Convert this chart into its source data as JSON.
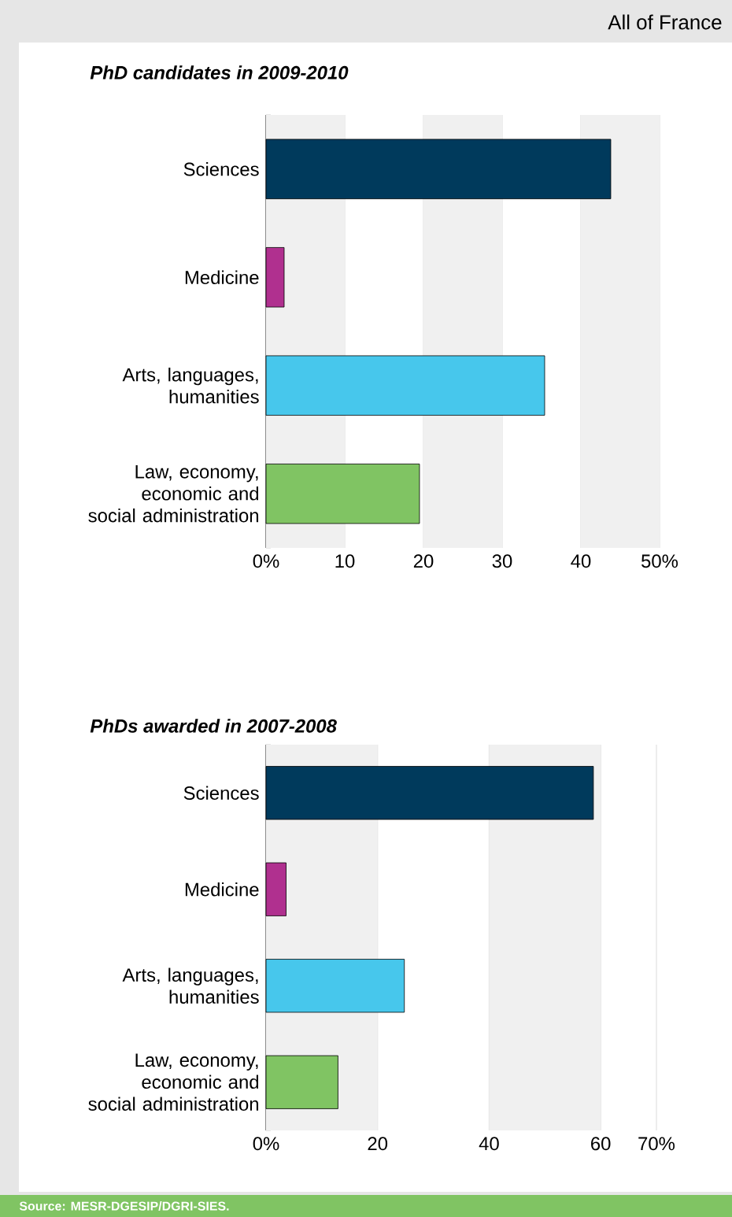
{
  "chart_data": [
    {
      "type": "bar",
      "orientation": "horizontal",
      "title": "PhD candidates in 2009-2010",
      "subtitle": "All of France",
      "categories": [
        "Sciences",
        "Medicine",
        "Arts, languages, humanities",
        "Law, economy, economic and social administration"
      ],
      "values": [
        43.8,
        2.3,
        35.4,
        19.5
      ],
      "colors": [
        "#003a5c",
        "#b0308f",
        "#47c7ec",
        "#80c463"
      ],
      "xlim": [
        0,
        50
      ],
      "xticks": [
        {
          "value": 0,
          "label": "0%"
        },
        10,
        20,
        30,
        40,
        {
          "value": 50,
          "label": "50%"
        }
      ],
      "grid": "x"
    },
    {
      "type": "bar",
      "orientation": "horizontal",
      "title": "PhDs awarded in 2007-2008",
      "categories": [
        "Sciences",
        "Medicine",
        "Arts, languages, humanities",
        "Law, economy, economic and social administration"
      ],
      "values": [
        58.7,
        3.6,
        24.8,
        12.9
      ],
      "colors": [
        "#003a5c",
        "#b0308f",
        "#47c7ec",
        "#80c463"
      ],
      "xlim": [
        0,
        70
      ],
      "xticks": [
        {
          "value": 0,
          "label": "0%"
        },
        20,
        40,
        60,
        {
          "value": 70,
          "label": "70%"
        }
      ],
      "grid": "x",
      "annotations": [
        "Source: MESR-DGESIP/DGRI-SIES."
      ]
    }
  ]
}
